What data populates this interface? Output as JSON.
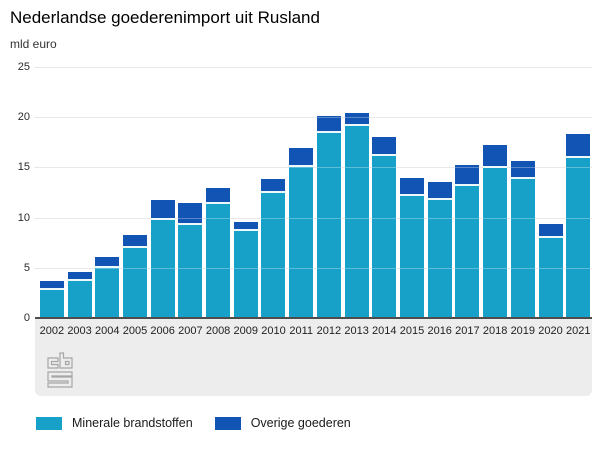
{
  "title": "Nederlandse goederenimport uit Rusland",
  "unit_label": "mld euro",
  "colors": {
    "mineral": "#17a1c9",
    "other": "#1254b4",
    "gridline": "#e0e0e0",
    "baseline": "#4d4d4d",
    "footer_band": "#ededed",
    "logo_gray": "#a6a6a6"
  },
  "icons": {
    "logo": "cbs-logo"
  },
  "chart_data": {
    "type": "bar",
    "stacked": true,
    "title": "Nederlandse goederenimport uit Rusland",
    "xlabel": "",
    "ylabel": "mld euro",
    "ylim": [
      0,
      25
    ],
    "yticks": [
      0,
      5,
      10,
      15,
      20,
      25
    ],
    "grid": true,
    "legend_position": "bottom",
    "categories": [
      "2002",
      "2003",
      "2004",
      "2005",
      "2006",
      "2007",
      "2008",
      "2009",
      "2010",
      "2011",
      "2012",
      "2013",
      "2014",
      "2015",
      "2016",
      "2017",
      "2018",
      "2019",
      "2020",
      "2021"
    ],
    "series": [
      {
        "name": "Minerale brandstoffen",
        "color": "#17a1c9",
        "values": [
          3.0,
          3.9,
          5.2,
          7.2,
          10.0,
          9.5,
          11.6,
          8.9,
          12.7,
          15.2,
          18.6,
          19.3,
          16.3,
          12.4,
          12.0,
          13.4,
          15.1,
          14.0,
          8.2,
          16.1
        ]
      },
      {
        "name": "Overige goederen",
        "color": "#1254b4",
        "values": [
          0.7,
          0.7,
          0.9,
          1.1,
          1.8,
          2.0,
          1.3,
          0.7,
          1.2,
          1.7,
          1.5,
          1.1,
          1.7,
          1.5,
          1.5,
          1.8,
          2.1,
          1.6,
          1.2,
          2.2
        ]
      }
    ]
  }
}
